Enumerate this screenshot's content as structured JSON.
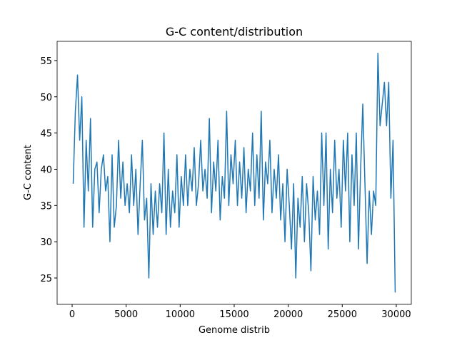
{
  "chart_data": {
    "type": "line",
    "title": "G-C content/distribution",
    "x_label": "Genome distrib",
    "y_label": "G-C content",
    "x": [
      100,
      300,
      500,
      700,
      900,
      1100,
      1300,
      1500,
      1700,
      1900,
      2100,
      2300,
      2500,
      2700,
      2900,
      3100,
      3300,
      3500,
      3700,
      3900,
      4100,
      4300,
      4500,
      4700,
      4900,
      5100,
      5300,
      5500,
      5700,
      5900,
      6100,
      6300,
      6500,
      6700,
      6900,
      7100,
      7300,
      7500,
      7700,
      7900,
      8100,
      8300,
      8500,
      8700,
      8900,
      9100,
      9300,
      9500,
      9700,
      9900,
      10100,
      10300,
      10500,
      10700,
      10900,
      11100,
      11300,
      11500,
      11700,
      11900,
      12100,
      12300,
      12500,
      12700,
      12900,
      13100,
      13300,
      13500,
      13700,
      13900,
      14100,
      14300,
      14500,
      14700,
      14900,
      15100,
      15300,
      15500,
      15700,
      15900,
      16100,
      16300,
      16500,
      16700,
      16900,
      17100,
      17300,
      17500,
      17700,
      17900,
      18100,
      18300,
      18500,
      18700,
      18900,
      19100,
      19300,
      19500,
      19700,
      19900,
      20100,
      20300,
      20500,
      20700,
      20900,
      21100,
      21300,
      21500,
      21700,
      21900,
      22100,
      22300,
      22500,
      22700,
      22900,
      23100,
      23300,
      23500,
      23700,
      23900,
      24100,
      24300,
      24500,
      24700,
      24900,
      25100,
      25300,
      25500,
      25700,
      25900,
      26100,
      26300,
      26500,
      26700,
      26900,
      27100,
      27300,
      27500,
      27700,
      27900,
      28100,
      28300,
      28500,
      28700,
      28900,
      29100,
      29300,
      29500,
      29700,
      29900
    ],
    "series": [
      {
        "color": "#1f77b4",
        "values": [
          38,
          48,
          53,
          44,
          50,
          32,
          44,
          37,
          47,
          32,
          40,
          41,
          34,
          40,
          42,
          37,
          39,
          30,
          42,
          32,
          35,
          44,
          36,
          41,
          35,
          38,
          34,
          42,
          35,
          40,
          31,
          38,
          44,
          33,
          36,
          25,
          38,
          31,
          37,
          32,
          38,
          34,
          45,
          31,
          40,
          32,
          37,
          34,
          42,
          32,
          39,
          35,
          42,
          35,
          40,
          37,
          43,
          35,
          38,
          44,
          37,
          40,
          36,
          47,
          34,
          41,
          37,
          44,
          33,
          39,
          36,
          48,
          35,
          42,
          38,
          44,
          35,
          41,
          36,
          43,
          34,
          40,
          37,
          45,
          35,
          42,
          36,
          48,
          33,
          41,
          38,
          44,
          34,
          40,
          36,
          42,
          33,
          38,
          30,
          40,
          35,
          29,
          38,
          25,
          36,
          32,
          39,
          30,
          38,
          34,
          26,
          39,
          33,
          37,
          31,
          45,
          35,
          45,
          29,
          40,
          34,
          44,
          36,
          40,
          32,
          44,
          37,
          45,
          30,
          42,
          35,
          45,
          29,
          40,
          49,
          38,
          27,
          37,
          31,
          37,
          35,
          56,
          46,
          49,
          52,
          46,
          52,
          36,
          44,
          23
        ]
      }
    ],
    "xlim": [
      -1387,
      31390
    ],
    "ylim": [
      21.36,
      57.65
    ],
    "xticks": [
      0,
      5000,
      10000,
      15000,
      20000,
      25000,
      30000
    ],
    "yticks": [
      25,
      30,
      35,
      40,
      45,
      50,
      55
    ]
  }
}
